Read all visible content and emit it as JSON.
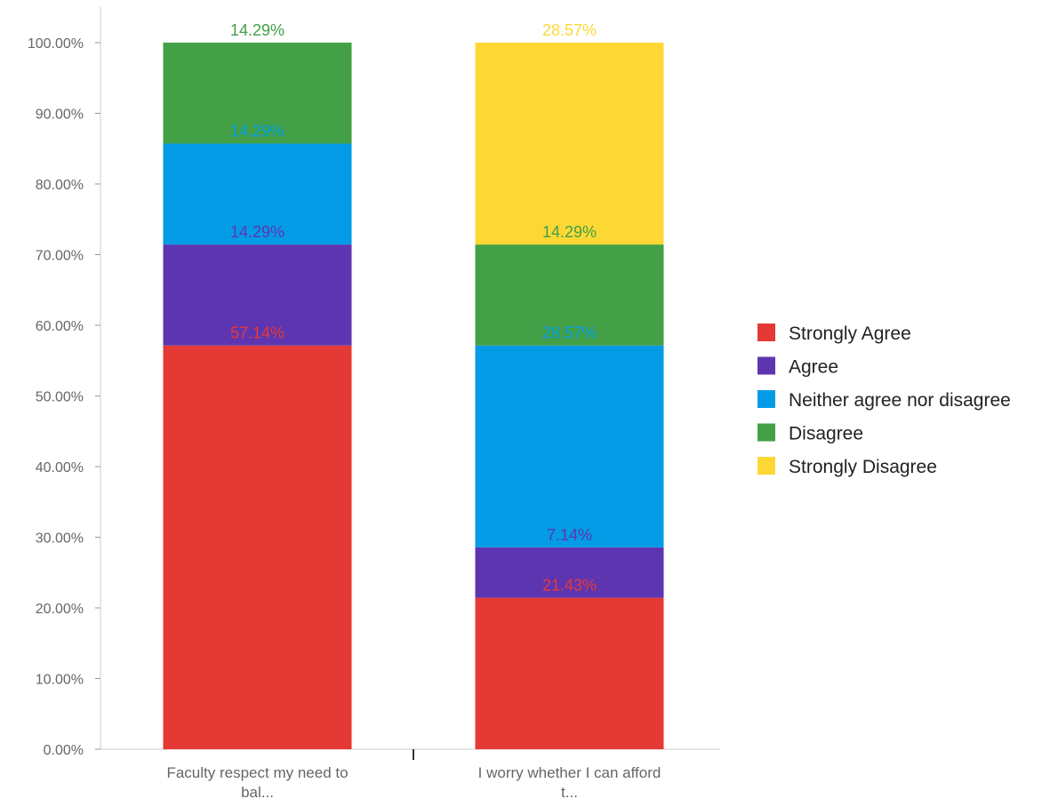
{
  "chart_data": {
    "type": "bar",
    "stacked": true,
    "title": "",
    "xlabel": "",
    "ylabel": "",
    "ylim": [
      0,
      100
    ],
    "y_tick_format": "percent_2dp",
    "y_ticks": [
      0,
      10,
      20,
      30,
      40,
      50,
      60,
      70,
      80,
      90,
      100
    ],
    "y_tick_labels": [
      "0.00%",
      "10.00%",
      "20.00%",
      "30.00%",
      "40.00%",
      "50.00%",
      "60.00%",
      "70.00%",
      "80.00%",
      "90.00%",
      "100.00%"
    ],
    "grid": false,
    "legend_position": "right",
    "categories": [
      [
        "Faculty respect my need to",
        "bal..."
      ],
      [
        "I worry whether I can afford",
        "t..."
      ]
    ],
    "series": [
      {
        "name": "Strongly Agree",
        "color": "#e53935",
        "values": [
          57.14,
          21.43
        ],
        "labels": [
          "57.14%",
          "21.43%"
        ]
      },
      {
        "name": "Agree",
        "color": "#5e35b1",
        "values": [
          14.29,
          7.14
        ],
        "labels": [
          "14.29%",
          "7.14%"
        ]
      },
      {
        "name": "Neither agree nor disagree",
        "color": "#039be5",
        "values": [
          14.29,
          28.57
        ],
        "labels": [
          "14.29%",
          "28.57%"
        ]
      },
      {
        "name": "Disagree",
        "color": "#43a047",
        "values": [
          14.29,
          14.29
        ],
        "labels": [
          "14.29%",
          "14.29%"
        ]
      },
      {
        "name": "Strongly Disagree",
        "color": "#fdd835",
        "values": [
          0,
          28.57
        ],
        "labels": [
          "",
          "28.57%"
        ]
      }
    ]
  }
}
